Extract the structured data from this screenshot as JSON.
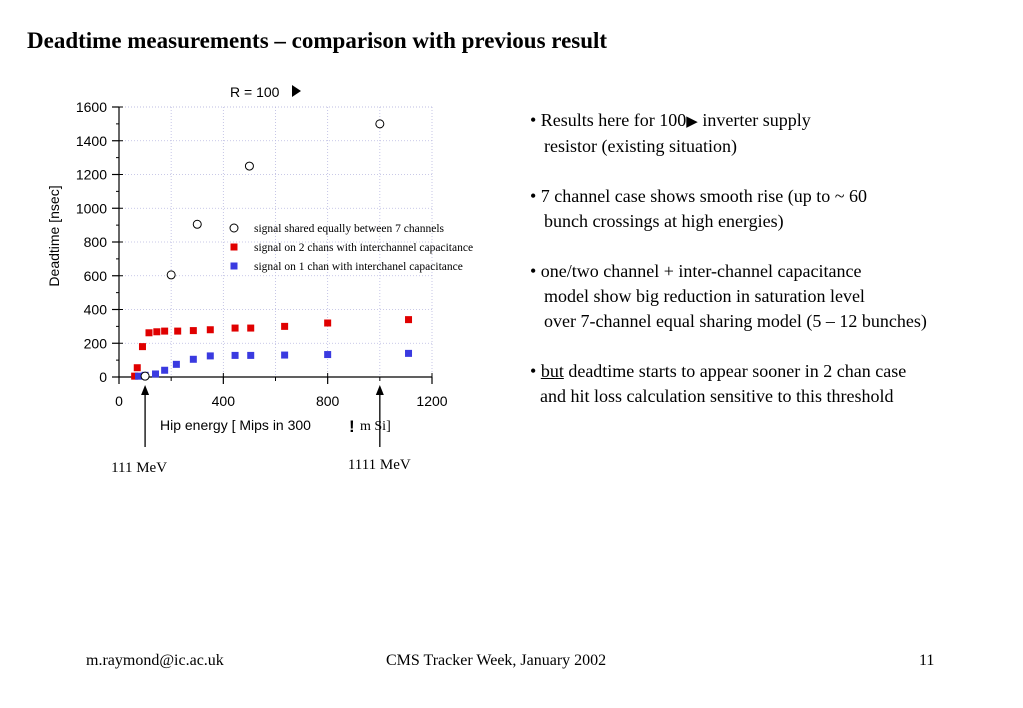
{
  "page_title": "Deadtime measurements – comparison with previous result",
  "chart_data": {
    "type": "scatter",
    "title": "R = 100",
    "xlabel": "Hip energy [ Mips in 300 ",
    "xlabel_tail": "m Si]",
    "ylabel": "Deadtime [nsec]",
    "xlim": [
      0,
      1200
    ],
    "ylim": [
      0,
      1600
    ],
    "xticks": [
      0,
      400,
      800,
      1200
    ],
    "yticks": [
      0,
      200,
      400,
      600,
      800,
      1000,
      1200,
      1400,
      1600
    ],
    "grid": true,
    "legend_position": "center-right",
    "series": [
      {
        "name": "signal shared equally between 7 channels",
        "marker": "open-circle",
        "color": "#000000",
        "points": [
          [
            100,
            5
          ],
          [
            200,
            605
          ],
          [
            300,
            905
          ],
          [
            500,
            1250
          ],
          [
            1000,
            1500
          ]
        ]
      },
      {
        "name": "signal on 2 chans with interchannel capacitance",
        "marker": "filled-square",
        "color": "#e00000",
        "points": [
          [
            60,
            5
          ],
          [
            70,
            55
          ],
          [
            90,
            180
          ],
          [
            115,
            262
          ],
          [
            145,
            268
          ],
          [
            175,
            272
          ],
          [
            225,
            272
          ],
          [
            285,
            275
          ],
          [
            350,
            280
          ],
          [
            445,
            290
          ],
          [
            505,
            290
          ],
          [
            635,
            300
          ],
          [
            800,
            320
          ],
          [
            1110,
            340
          ]
        ]
      },
      {
        "name": "signal on 1 chan with interchanel capacitance",
        "marker": "filled-square",
        "color": "#3a3ae0",
        "points": [
          [
            75,
            5
          ],
          [
            100,
            10
          ],
          [
            140,
            18
          ],
          [
            175,
            40
          ],
          [
            220,
            75
          ],
          [
            285,
            105
          ],
          [
            350,
            125
          ],
          [
            445,
            128
          ],
          [
            505,
            128
          ],
          [
            635,
            130
          ],
          [
            800,
            133
          ],
          [
            1110,
            140
          ]
        ]
      }
    ],
    "annotations": [
      {
        "text": "111 MeV",
        "x": 100
      },
      {
        "text": "1111 MeV",
        "x": 1000
      }
    ]
  },
  "bullets": {
    "b1_line1": "• Results here for 100",
    "b1_line1_tail": " inverter supply",
    "b1_line2": "resistor (existing situation)",
    "b2_line1": "• 7 channel case shows smooth rise (up to ~ 60",
    "b2_line2": "bunch crossings at high energies)",
    "b3_line1": "• one/two channel + inter-channel capacitance",
    "b3_line2": "model show big reduction in saturation level",
    "b3_line3": "over 7-channel equal sharing model (5 – 12 bunches)",
    "b4_prefix": "• ",
    "b4_underlined": "but",
    "b4_line1_rest": " deadtime starts to appear sooner in 2 chan case",
    "b4_line2": "and hit loss calculation sensitive to this threshold"
  },
  "footer": {
    "email": "m.raymond@ic.ac.uk",
    "event": "CMS Tracker Week, January 2002",
    "page_number": "11"
  }
}
